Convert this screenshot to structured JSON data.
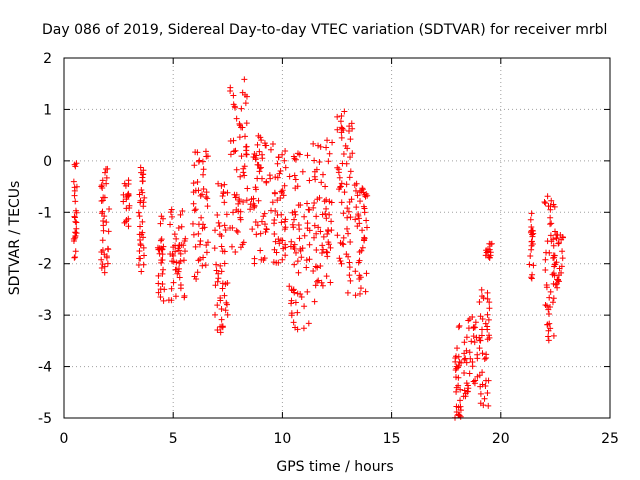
{
  "chart_data": {
    "type": "scatter",
    "title": "Day 086 of 2019, Sidereal Day-to-day VTEC variation (SDTVAR) for receiver mrbl",
    "xlabel": "GPS time / hours",
    "ylabel": "SDTVAR / TECUs",
    "xlim": [
      0,
      25
    ],
    "ylim": [
      -5,
      2
    ],
    "xticks": [
      "0",
      "5",
      "10",
      "15",
      "20",
      "25"
    ],
    "yticks": [
      "-5",
      "-4",
      "-3",
      "-2",
      "-1",
      "0",
      "1",
      "2"
    ],
    "grid": true,
    "marker": "plus",
    "marker_color": "#ff0000",
    "series": [
      {
        "name": "SDTVAR",
        "segments": [
          {
            "x": [
              0.45,
              0.6
            ],
            "y": [
              -2.0,
              0.15
            ]
          },
          {
            "x": [
              1.7,
              2.1
            ],
            "y": [
              -2.3,
              -0.1
            ]
          },
          {
            "x": [
              2.7,
              3.0
            ],
            "y": [
              -1.3,
              -0.3
            ]
          },
          {
            "x": [
              3.4,
              3.7
            ],
            "y": [
              -2.5,
              -0.1
            ]
          },
          {
            "x": [
              4.3,
              4.6
            ],
            "y": [
              -2.8,
              -1.0
            ]
          },
          {
            "x": [
              4.8,
              5.6
            ],
            "y": [
              -2.8,
              -0.9
            ]
          },
          {
            "x": [
              5.9,
              6.6
            ],
            "y": [
              -2.3,
              0.2
            ]
          },
          {
            "x": [
              6.9,
              7.5
            ],
            "y": [
              -3.4,
              -0.4
            ]
          },
          {
            "x": [
              7.6,
              8.4
            ],
            "y": [
              -1.8,
              1.6
            ]
          },
          {
            "x": [
              8.5,
              9.3
            ],
            "y": [
              -2.0,
              0.5
            ]
          },
          {
            "x": [
              9.4,
              10.2
            ],
            "y": [
              -2.0,
              0.4
            ]
          },
          {
            "x": [
              10.3,
              11.3
            ],
            "y": [
              -3.3,
              0.2
            ]
          },
          {
            "x": [
              11.4,
              12.3
            ],
            "y": [
              -2.8,
              0.4
            ]
          },
          {
            "x": [
              12.5,
              13.2
            ],
            "y": [
              -2.6,
              1.0
            ]
          },
          {
            "x": [
              13.3,
              13.9
            ],
            "y": [
              -2.8,
              -0.4
            ]
          },
          {
            "x": [
              17.9,
              18.2
            ],
            "y": [
              -5.0,
              -3.0
            ]
          },
          {
            "x": [
              18.3,
              19.0
            ],
            "y": [
              -4.6,
              -3.0
            ]
          },
          {
            "x": [
              19.0,
              19.5
            ],
            "y": [
              -4.8,
              -2.5
            ]
          },
          {
            "x": [
              19.3,
              19.6
            ],
            "y": [
              -1.9,
              -1.6
            ]
          },
          {
            "x": [
              21.3,
              21.5
            ],
            "y": [
              -2.3,
              -0.9
            ]
          },
          {
            "x": [
              22.0,
              22.5
            ],
            "y": [
              -3.5,
              -0.6
            ]
          },
          {
            "x": [
              22.4,
              22.9
            ],
            "y": [
              -2.5,
              -1.4
            ]
          }
        ]
      }
    ]
  }
}
